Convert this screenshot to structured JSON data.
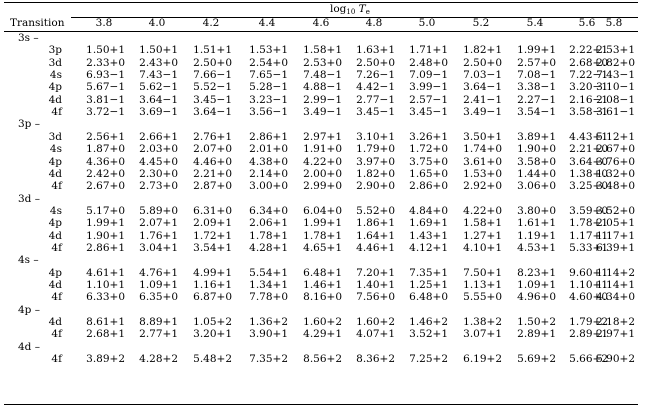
{
  "header": {
    "span_label": "log",
    "span_label_sub": "10",
    "span_label_var": "T",
    "span_label_var_sub": "e",
    "transition_label": "Transition",
    "temperatures": [
      "3.8",
      "4.0",
      "4.2",
      "4.4",
      "4.6",
      "4.8",
      "5.0",
      "5.2",
      "5.4",
      "5.6",
      "5.8"
    ]
  },
  "groups": [
    {
      "label": "3s –",
      "rows": [
        {
          "to": "3p",
          "values": [
            "1.50+1",
            "1.50+1",
            "1.51+1",
            "1.53+1",
            "1.58+1",
            "1.63+1",
            "1.71+1",
            "1.82+1",
            "1.99+1",
            "2.22+1",
            "2.53+1"
          ]
        },
        {
          "to": "3d",
          "values": [
            "2.33+0",
            "2.43+0",
            "2.50+0",
            "2.54+0",
            "2.53+0",
            "2.50+0",
            "2.48+0",
            "2.50+0",
            "2.57+0",
            "2.68+0",
            "2.82+0"
          ]
        },
        {
          "to": "4s",
          "values": [
            "6.93−1",
            "7.43−1",
            "7.66−1",
            "7.65−1",
            "7.48−1",
            "7.26−1",
            "7.09−1",
            "7.03−1",
            "7.08−1",
            "7.22−1",
            "7.43−1"
          ]
        },
        {
          "to": "4p",
          "values": [
            "5.67−1",
            "5.62−1",
            "5.52−1",
            "5.28−1",
            "4.88−1",
            "4.42−1",
            "3.99−1",
            "3.64−1",
            "3.38−1",
            "3.20−1",
            "3.10−1"
          ]
        },
        {
          "to": "4d",
          "values": [
            "3.81−1",
            "3.64−1",
            "3.45−1",
            "3.23−1",
            "2.99−1",
            "2.77−1",
            "2.57−1",
            "2.41−1",
            "2.27−1",
            "2.16−1",
            "2.08−1"
          ]
        },
        {
          "to": "4f",
          "values": [
            "3.72−1",
            "3.69−1",
            "3.64−1",
            "3.56−1",
            "3.49−1",
            "3.45−1",
            "3.45−1",
            "3.49−1",
            "3.54−1",
            "3.58−1",
            "3.61−1"
          ]
        }
      ]
    },
    {
      "label": "3p –",
      "rows": [
        {
          "to": "3d",
          "values": [
            "2.56+1",
            "2.66+1",
            "2.76+1",
            "2.86+1",
            "2.97+1",
            "3.10+1",
            "3.26+1",
            "3.50+1",
            "3.89+1",
            "4.43+1",
            "5.12+1"
          ]
        },
        {
          "to": "4s",
          "values": [
            "1.87+0",
            "2.03+0",
            "2.07+0",
            "2.01+0",
            "1.91+0",
            "1.79+0",
            "1.72+0",
            "1.74+0",
            "1.90+0",
            "2.21+0",
            "2.67+0"
          ]
        },
        {
          "to": "4p",
          "values": [
            "4.36+0",
            "4.45+0",
            "4.46+0",
            "4.38+0",
            "4.22+0",
            "3.97+0",
            "3.75+0",
            "3.61+0",
            "3.58+0",
            "3.64+0",
            "3.76+0"
          ]
        },
        {
          "to": "4d",
          "values": [
            "2.42+0",
            "2.30+0",
            "2.21+0",
            "2.14+0",
            "2.00+0",
            "1.82+0",
            "1.65+0",
            "1.53+0",
            "1.44+0",
            "1.38+0",
            "1.32+0"
          ]
        },
        {
          "to": "4f",
          "values": [
            "2.67+0",
            "2.73+0",
            "2.87+0",
            "3.00+0",
            "2.99+0",
            "2.90+0",
            "2.86+0",
            "2.92+0",
            "3.06+0",
            "3.25+0",
            "3.48+0"
          ]
        }
      ]
    },
    {
      "label": "3d –",
      "rows": [
        {
          "to": "4s",
          "values": [
            "5.17+0",
            "5.89+0",
            "6.31+0",
            "6.34+0",
            "6.04+0",
            "5.52+0",
            "4.84+0",
            "4.22+0",
            "3.80+0",
            "3.59+0",
            "3.52+0"
          ]
        },
        {
          "to": "4p",
          "values": [
            "1.99+1",
            "2.07+1",
            "2.09+1",
            "2.06+1",
            "1.99+1",
            "1.86+1",
            "1.69+1",
            "1.58+1",
            "1.61+1",
            "1.78+1",
            "2.05+1"
          ]
        },
        {
          "to": "4d",
          "values": [
            "1.90+1",
            "1.76+1",
            "1.72+1",
            "1.78+1",
            "1.78+1",
            "1.64+1",
            "1.43+1",
            "1.27+1",
            "1.19+1",
            "1.17+1",
            "1.17+1"
          ]
        },
        {
          "to": "4f",
          "values": [
            "2.86+1",
            "3.04+1",
            "3.54+1",
            "4.28+1",
            "4.65+1",
            "4.46+1",
            "4.12+1",
            "4.10+1",
            "4.53+1",
            "5.33+1",
            "6.39+1"
          ]
        }
      ]
    },
    {
      "label": "4s –",
      "rows": [
        {
          "to": "4p",
          "values": [
            "4.61+1",
            "4.76+1",
            "4.99+1",
            "5.54+1",
            "6.48+1",
            "7.20+1",
            "7.35+1",
            "7.50+1",
            "8.23+1",
            "9.60+1",
            "1.14+2"
          ]
        },
        {
          "to": "4d",
          "values": [
            "1.10+1",
            "1.09+1",
            "1.16+1",
            "1.34+1",
            "1.46+1",
            "1.40+1",
            "1.25+1",
            "1.13+1",
            "1.09+1",
            "1.10+1",
            "1.14+1"
          ]
        },
        {
          "to": "4f",
          "values": [
            "6.33+0",
            "6.35+0",
            "6.87+0",
            "7.78+0",
            "8.16+0",
            "7.56+0",
            "6.48+0",
            "5.55+0",
            "4.96+0",
            "4.60+0",
            "4.34+0"
          ]
        }
      ]
    },
    {
      "label": "4p –",
      "rows": [
        {
          "to": "4d",
          "values": [
            "8.61+1",
            "8.89+1",
            "1.05+2",
            "1.36+2",
            "1.60+2",
            "1.60+2",
            "1.46+2",
            "1.38+2",
            "1.50+2",
            "1.79+2",
            "2.18+2"
          ]
        },
        {
          "to": "4f",
          "values": [
            "2.68+1",
            "2.77+1",
            "3.20+1",
            "3.90+1",
            "4.29+1",
            "4.07+1",
            "3.52+1",
            "3.07+1",
            "2.89+1",
            "2.89+1",
            "2.97+1"
          ]
        }
      ]
    },
    {
      "label": "4d –",
      "rows": [
        {
          "to": "4f",
          "values": [
            "3.89+2",
            "4.28+2",
            "5.48+2",
            "7.35+2",
            "8.56+2",
            "8.36+2",
            "7.25+2",
            "6.19+2",
            "5.69+2",
            "5.66+2",
            "5.90+2"
          ]
        }
      ]
    }
  ]
}
